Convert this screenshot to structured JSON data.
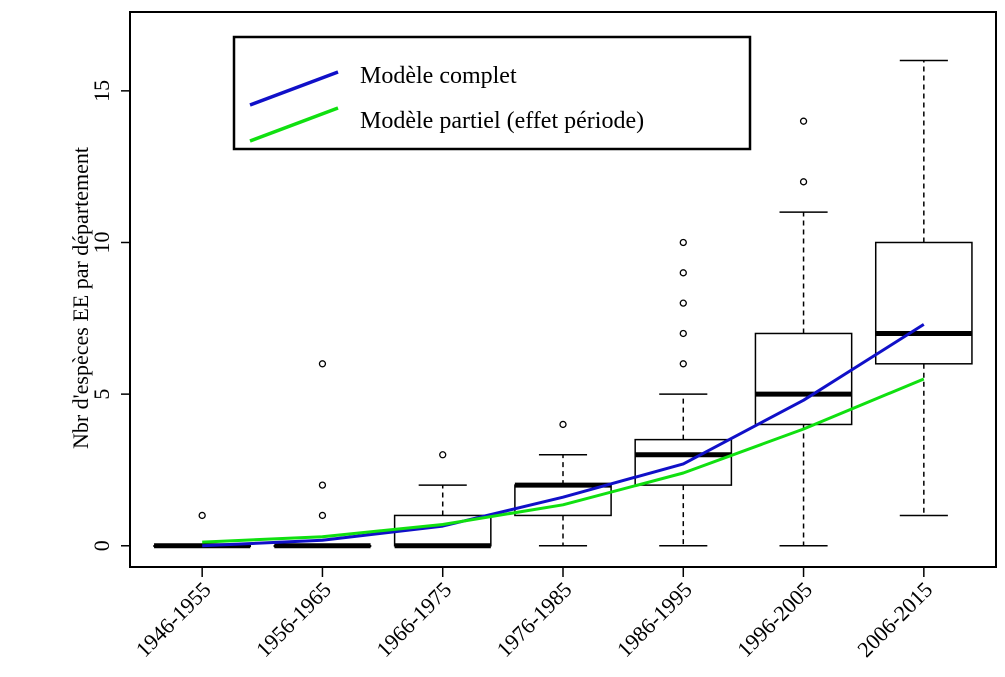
{
  "chart_data": {
    "type": "box",
    "title": "",
    "xlabel": "",
    "ylabel": "Nbr d'espèces EE par département",
    "ylim": [
      -0.7,
      17.6
    ],
    "yticks": [
      0,
      5,
      10,
      15
    ],
    "grid": false,
    "legend_position": "top-left",
    "categories": [
      "1946-1955",
      "1956-1965",
      "1966-1975",
      "1976-1985",
      "1986-1995",
      "1996-2005",
      "2006-2015"
    ],
    "boxes": [
      {
        "min": 0,
        "q1": 0,
        "median": 0,
        "q3": 0,
        "max": 0,
        "outliers": [
          1
        ]
      },
      {
        "min": 0,
        "q1": 0,
        "median": 0,
        "q3": 0,
        "max": 0,
        "outliers": [
          1,
          2,
          6
        ]
      },
      {
        "min": 0,
        "q1": 0,
        "median": 0,
        "q3": 1,
        "max": 2,
        "outliers": [
          3
        ]
      },
      {
        "min": 0,
        "q1": 1,
        "median": 2,
        "q3": 2,
        "max": 3,
        "outliers": [
          4
        ]
      },
      {
        "min": 0,
        "q1": 2,
        "median": 3,
        "q3": 3.5,
        "max": 5,
        "outliers": [
          6,
          7,
          8,
          9,
          10
        ]
      },
      {
        "min": 0,
        "q1": 4,
        "median": 5,
        "q3": 7,
        "max": 11,
        "outliers": [
          12,
          14
        ]
      },
      {
        "min": 1,
        "q1": 6,
        "median": 7,
        "q3": 10,
        "max": 16,
        "outliers": []
      }
    ],
    "series": [
      {
        "name": "Modèle complet",
        "color": "#1010c8",
        "values": [
          0.0,
          0.18,
          0.65,
          1.6,
          2.7,
          4.8,
          7.3
        ]
      },
      {
        "name": "Modèle partiel (effet période)",
        "color": "#10e010",
        "values": [
          0.12,
          0.3,
          0.7,
          1.35,
          2.4,
          3.85,
          5.5
        ]
      }
    ]
  }
}
